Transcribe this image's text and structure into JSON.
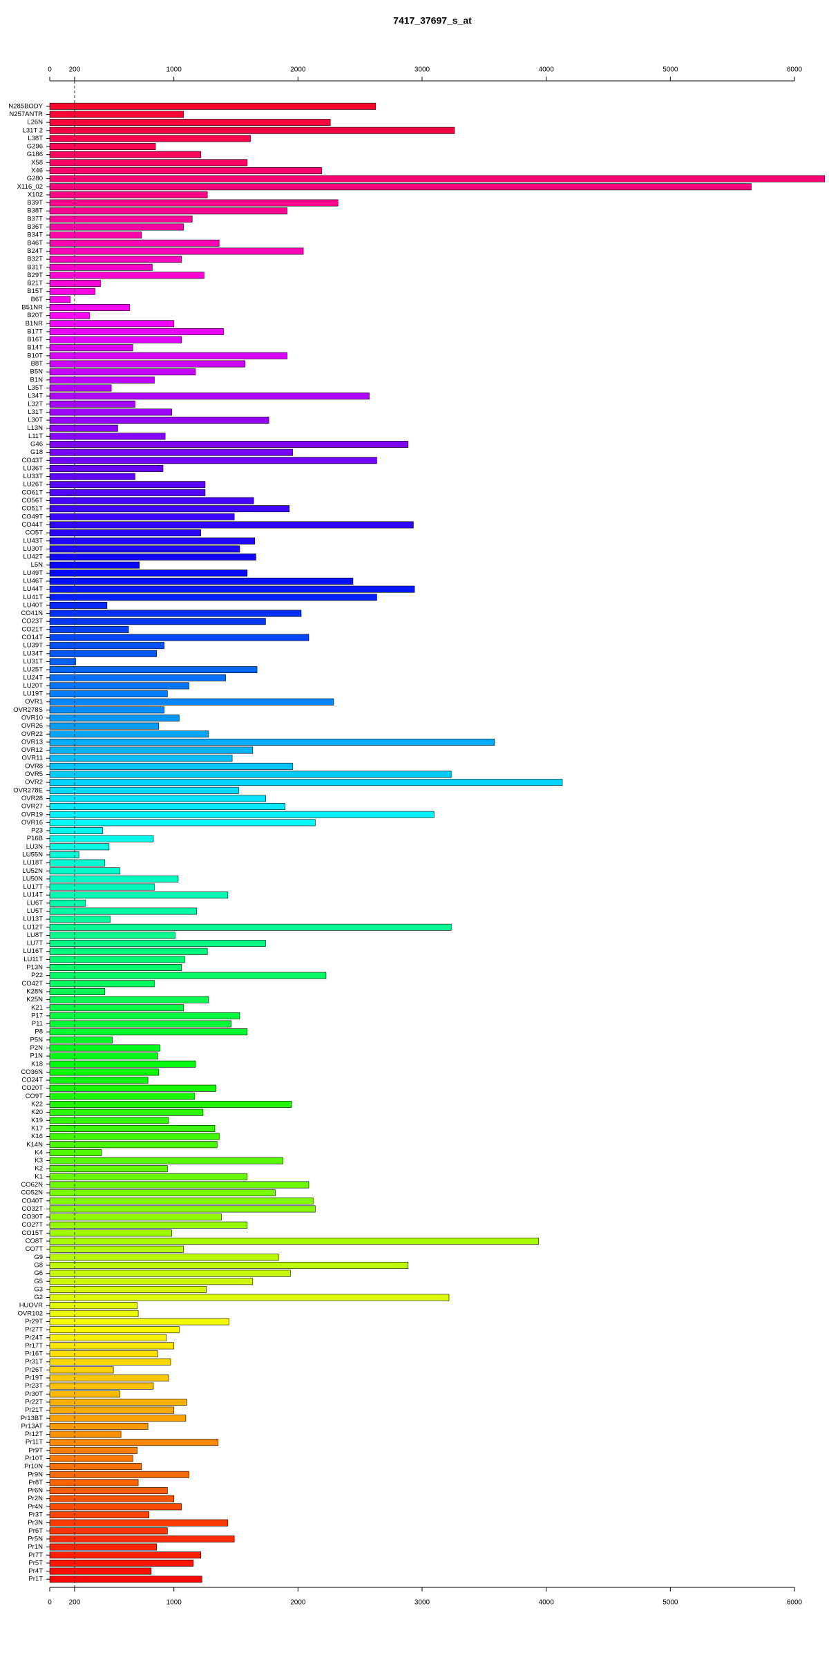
{
  "chart_data": {
    "type": "barh",
    "title": "7417_37697_s_at",
    "categories": [
      "N285BODY",
      "N257ANTR",
      "L26N",
      "L31T 2",
      "L38T",
      "G296",
      "G186",
      "X58",
      "X46",
      "G280",
      "X116_02",
      "X102",
      "B39T",
      "B38T",
      "B37T",
      "B36T",
      "B34T",
      "B46T",
      "B24T",
      "B32T",
      "B31T",
      "B29T",
      "B21T",
      "B15T",
      "B6T",
      "B51NR",
      "B20T",
      "B1NR",
      "B17T",
      "B16T",
      "B14T",
      "B10T",
      "B8T",
      "B5N",
      "B1N",
      "L35T",
      "L34T",
      "L32T",
      "L31T",
      "L30T",
      "L13N",
      "L11T",
      "G46",
      "G18",
      "CO43T",
      "LU36T",
      "LU33T",
      "LU26T",
      "CO61T",
      "CO56T",
      "CO51T",
      "CO49T",
      "CO44T",
      "CO5T",
      "LU43T",
      "LU30T",
      "LU42T",
      "L5N",
      "LU49T",
      "LU46T",
      "LU44T",
      "LU41T",
      "LU40T",
      "CO41N",
      "CO23T",
      "CO21T",
      "CO14T",
      "LU39T",
      "LU34T",
      "LU31T",
      "LU25T",
      "LU24T",
      "LU20T",
      "LU19T",
      "OVR1",
      "OVR278S",
      "OVR10",
      "OVR26",
      "OVR22",
      "OVR13",
      "OVR12",
      "OVR11",
      "OVR8",
      "OVR5",
      "OVR2",
      "OVR278E",
      "OVR28",
      "OVR27",
      "OVR19",
      "OVR16",
      "P23",
      "P16B",
      "LU3N",
      "LU55N",
      "LU18T",
      "LU52N",
      "LU50N",
      "LU17T",
      "LU14T",
      "LU6T",
      "LU5T",
      "LU13T",
      "LU12T",
      "LU8T",
      "LU7T",
      "LU16T",
      "LU11T",
      "P13N",
      "P22",
      "CO42T",
      "K28N",
      "K25N",
      "K21",
      "P17",
      "P11",
      "P8",
      "P5N",
      "P2N",
      "P1N",
      "K18",
      "CO36N",
      "CO24T",
      "CO20T",
      "CO9T",
      "K22",
      "K20",
      "K19",
      "K17",
      "K16",
      "K14N",
      "K4",
      "K3",
      "K2",
      "K1",
      "CO62N",
      "CO52N",
      "CO40T",
      "CO32T",
      "CO30T",
      "CO27T",
      "CO15T",
      "CO8T",
      "CO7T",
      "G9",
      "G8",
      "G6",
      "G5",
      "G3",
      "G2",
      "HUOVR",
      "OVR102",
      "Pr29T",
      "Pr27T",
      "Pr24T",
      "Pr17T",
      "Pr16T",
      "Pr31T",
      "Pr26T",
      "Pr19T",
      "Pr23T",
      "Pr30T",
      "Pr22T",
      "Pr21T",
      "Pr13BT",
      "Pr13AT",
      "Pr12T",
      "Pr11T",
      "Pr9T",
      "Pr10T",
      "Pr10N",
      "Pr9N",
      "Pr8T",
      "Pr6N",
      "Pr2N",
      "Pr4N",
      "Pr3T",
      "Pr3N",
      "Pr6T",
      "Pr5N",
      "Pr1N",
      "Pr7T",
      "Pr5T",
      "Pr4T",
      "Pr1T"
    ],
    "values": [
      2626,
      1078,
      2261,
      3261,
      1617,
      852,
      1217,
      1591,
      2191,
      6243,
      5652,
      1270,
      2322,
      1913,
      1148,
      1078,
      739,
      1365,
      2043,
      1061,
      826,
      1243,
      409,
      365,
      165,
      643,
      322,
      1000,
      1400,
      1061,
      670,
      1913,
      1574,
      1174,
      843,
      496,
      2574,
      687,
      983,
      1765,
      548,
      930,
      2887,
      1957,
      2635,
      913,
      687,
      1252,
      1252,
      1643,
      1930,
      1487,
      2930,
      1217,
      1652,
      1530,
      1661,
      722,
      1591,
      2443,
      2939,
      2635,
      461,
      2026,
      1739,
      635,
      2087,
      922,
      861,
      209,
      1670,
      1417,
      1122,
      948,
      2287,
      922,
      1043,
      878,
      1278,
      3583,
      1635,
      1470,
      1957,
      3235,
      4130,
      1522,
      1739,
      1896,
      3096,
      2139,
      426,
      835,
      478,
      235,
      443,
      565,
      1035,
      843,
      1435,
      287,
      1183,
      487,
      3235,
      1009,
      1739,
      1270,
      1087,
      1061,
      2226,
      843,
      443,
      1278,
      1078,
      1530,
      1461,
      1591,
      504,
      887,
      870,
      1174,
      878,
      791,
      1339,
      1165,
      1948,
      1235,
      957,
      1330,
      1365,
      1348,
      417,
      1878,
      948,
      1591,
      2087,
      1817,
      2122,
      2139,
      1383,
      1591,
      983,
      3939,
      1078,
      1843,
      2887,
      1939,
      1635,
      1261,
      3217,
      704,
      713,
      1443,
      1043,
      939,
      1000,
      870,
      974,
      513,
      957,
      835,
      565,
      1104,
      1000,
      1096,
      791,
      574,
      1357,
      704,
      670,
      739,
      1122,
      713,
      948,
      1000,
      1061,
      800,
      1435,
      948,
      1487,
      861,
      1217,
      1157,
      817,
      1226
    ],
    "xlim": [
      0,
      6000
    ],
    "xticks": [
      0,
      200,
      1000,
      2000,
      3000,
      4000,
      5000,
      6000
    ],
    "threshold_line": 200
  }
}
